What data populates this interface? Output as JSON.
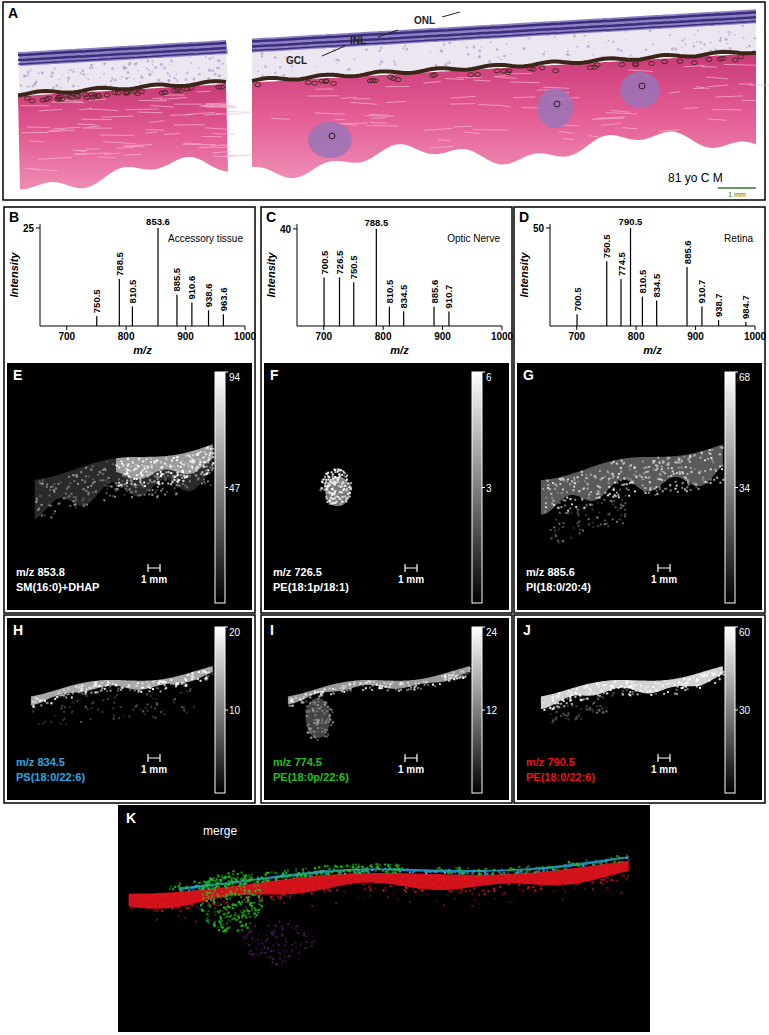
{
  "histology": {
    "label": "A",
    "annotations": [
      "GCL",
      "INL",
      "ONL"
    ],
    "sample": "81 yo C M",
    "scale_bar": "1 mm"
  },
  "chart_data": [
    {
      "type": "bar",
      "panel": "B",
      "title": "Accessory tissue",
      "x_label": "m/z",
      "y_label": "Intensity",
      "x": [
        750.5,
        788.5,
        810.5,
        853.6,
        885.5,
        910.6,
        938.6,
        963.6
      ],
      "values": [
        2.5,
        12,
        5,
        25,
        8,
        6,
        4,
        3
      ],
      "xlim": [
        655,
        1000
      ],
      "xticks": [
        700,
        800,
        900,
        1000
      ],
      "ylim": [
        0,
        26
      ],
      "yticks": [
        25
      ],
      "color": "#000000"
    },
    {
      "type": "bar",
      "panel": "C",
      "title": "Optic Nerve",
      "x_label": "m/z",
      "y_label": "Intensity",
      "x": [
        700.5,
        726.5,
        750.5,
        788.5,
        810.5,
        834.5,
        885.6,
        910.7
      ],
      "values": [
        20,
        20,
        18,
        40,
        8,
        6,
        8,
        6
      ],
      "xlim": [
        655,
        1000
      ],
      "xticks": [
        700,
        800,
        900,
        1000
      ],
      "ylim": [
        0,
        42
      ],
      "yticks": [
        40
      ],
      "color": "#000000"
    },
    {
      "type": "bar",
      "panel": "D",
      "title": "Retina",
      "x_label": "m/z",
      "y_label": "Intensity",
      "x": [
        700.5,
        750.5,
        774.5,
        790.5,
        810.5,
        834.5,
        885.6,
        910.7,
        938.7,
        984.7
      ],
      "values": [
        6,
        33,
        24,
        50,
        15,
        13,
        30,
        10,
        3,
        2
      ],
      "xlim": [
        655,
        1000
      ],
      "xticks": [
        700,
        800,
        900,
        1000
      ],
      "ylim": [
        0,
        52
      ],
      "yticks": [
        50
      ],
      "color": "#000000"
    }
  ],
  "ms_images": [
    {
      "label": "E",
      "mz": "m/z 853.8",
      "lipid": "SM(16:0)+DHAP",
      "color": "#ffffff",
      "scale_bar": "1 mm",
      "colorbar": {
        "range": [
          0,
          94
        ],
        "ticks": [
          94,
          47
        ]
      }
    },
    {
      "label": "F",
      "mz": "m/z 726.5",
      "lipid": "PE(18:1p/18:1)",
      "color": "#ffffff",
      "scale_bar": "1 mm",
      "colorbar": {
        "range": [
          0,
          6
        ],
        "ticks": [
          6,
          3
        ]
      }
    },
    {
      "label": "G",
      "mz": "m/z 885.6",
      "lipid": "PI(18:0/20:4)",
      "color": "#ffffff",
      "scale_bar": "1 mm",
      "colorbar": {
        "range": [
          0,
          68
        ],
        "ticks": [
          68,
          34
        ]
      }
    },
    {
      "label": "H",
      "mz": "m/z 834.5",
      "lipid": "PS(18:0/22:6)",
      "color": "#2aa7e1",
      "scale_bar": "1 mm",
      "colorbar": {
        "range": [
          0,
          20
        ],
        "ticks": [
          20,
          10
        ]
      }
    },
    {
      "label": "I",
      "mz": "m/z 774.5",
      "lipid": "PE(18:0p/22:6)",
      "color": "#22c022",
      "scale_bar": "1 mm",
      "colorbar": {
        "range": [
          0,
          24
        ],
        "ticks": [
          24,
          12
        ]
      }
    },
    {
      "label": "J",
      "mz": "m/z 790.5",
      "lipid": "PE(18:0/22:6)",
      "color": "#e8141e",
      "scale_bar": "1 mm",
      "colorbar": {
        "range": [
          0,
          60
        ],
        "ticks": [
          60,
          30
        ]
      }
    }
  ],
  "merge": {
    "label": "K",
    "title": "merge"
  }
}
